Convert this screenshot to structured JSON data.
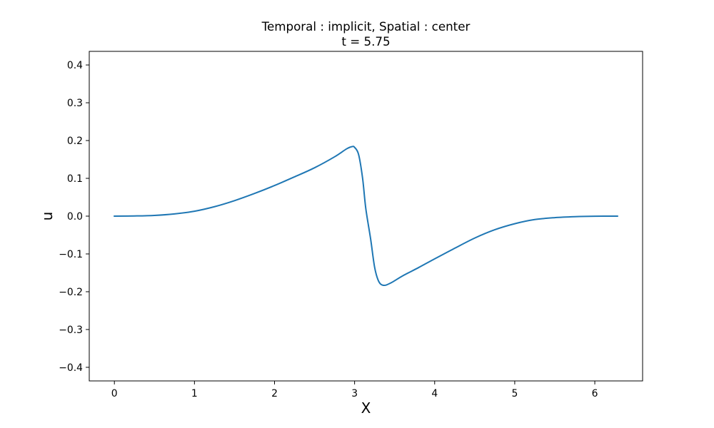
{
  "chart_data": {
    "type": "line",
    "title": "Temporal : implicit, Spatial : center",
    "subtitle": "t = 5.75",
    "xlabel": "X",
    "ylabel": "u",
    "xlim": [
      -0.314,
      6.597
    ],
    "ylim": [
      -0.436,
      0.436
    ],
    "x_ticks": [
      0,
      1,
      2,
      3,
      4,
      5,
      6
    ],
    "x_tick_labels": [
      "0",
      "1",
      "2",
      "3",
      "4",
      "5",
      "6"
    ],
    "y_ticks": [
      -0.4,
      -0.3,
      -0.2,
      -0.1,
      0.0,
      0.1,
      0.2,
      0.3,
      0.4
    ],
    "y_tick_labels": [
      "−0.4",
      "−0.3",
      "−0.2",
      "−0.1",
      "0.0",
      "0.1",
      "0.2",
      "0.3",
      "0.4"
    ],
    "grid": false,
    "legend": "none",
    "line_color": "#1f77b4",
    "series": [
      {
        "x": [
          0,
          0.25,
          0.5,
          0.75,
          1.0,
          1.25,
          1.5,
          1.75,
          2.0,
          2.25,
          2.5,
          2.75,
          2.9,
          2.97,
          3.0,
          3.05,
          3.1,
          3.14,
          3.2,
          3.25,
          3.3,
          3.36,
          3.45,
          3.6,
          3.8,
          4.0,
          4.25,
          4.5,
          4.75,
          5.0,
          5.25,
          5.5,
          5.75,
          6.0,
          6.283
        ],
        "y": [
          0.0,
          0.0005,
          0.002,
          0.006,
          0.013,
          0.025,
          0.041,
          0.06,
          0.081,
          0.104,
          0.128,
          0.157,
          0.178,
          0.184,
          0.182,
          0.163,
          0.1,
          0.02,
          -0.06,
          -0.135,
          -0.172,
          -0.183,
          -0.177,
          -0.158,
          -0.136,
          -0.113,
          -0.085,
          -0.058,
          -0.036,
          -0.02,
          -0.009,
          -0.004,
          -0.0015,
          -0.0003,
          0.0
        ]
      }
    ]
  }
}
